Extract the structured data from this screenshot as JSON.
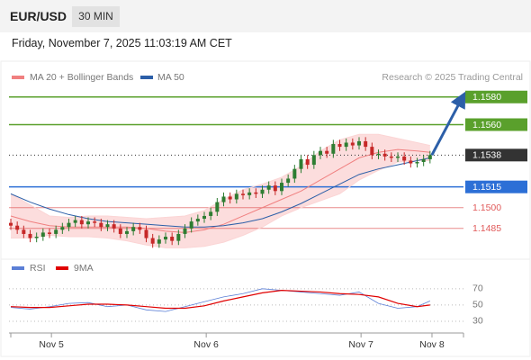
{
  "header": {
    "symbol": "EUR/USD",
    "interval": "30 MIN",
    "timestamp": "Friday, November 7, 2025 11:03:19 AM CET",
    "credit": "Research © 2025 Trading Central"
  },
  "chart_data": [
    {
      "type": "candlestick",
      "xlim": [
        0,
        72
      ],
      "ylim": [
        1.1466,
        1.1587
      ],
      "up_color": "#2e7d32",
      "down_color": "#c62828",
      "x": [
        0,
        1,
        2,
        3,
        4,
        5,
        6,
        7,
        8,
        9,
        10,
        11,
        12,
        13,
        14,
        15,
        16,
        17,
        18,
        19,
        20,
        21,
        22,
        23,
        24,
        25,
        26,
        27,
        28,
        29,
        30,
        31,
        32,
        33,
        34,
        35,
        36,
        37,
        38,
        39,
        40,
        41,
        42,
        43,
        44,
        45,
        46,
        47,
        48,
        49,
        50,
        51,
        52,
        53,
        54,
        55,
        56,
        57,
        58,
        59,
        60,
        61,
        62,
        63,
        64,
        65
      ],
      "open": [
        1.1489,
        1.1487,
        1.1484,
        1.1481,
        1.1478,
        1.1479,
        1.1482,
        1.1481,
        1.1484,
        1.1486,
        1.1489,
        1.1491,
        1.1488,
        1.149,
        1.1489,
        1.1486,
        1.1488,
        1.1485,
        1.1481,
        1.1483,
        1.1486,
        1.1484,
        1.1478,
        1.1474,
        1.1477,
        1.1479,
        1.1476,
        1.1481,
        1.1485,
        1.149,
        1.1492,
        1.1494,
        1.1497,
        1.1504,
        1.1508,
        1.1506,
        1.151,
        1.1509,
        1.1511,
        1.151,
        1.1513,
        1.1516,
        1.1512,
        1.1518,
        1.1521,
        1.1528,
        1.1535,
        1.1531,
        1.1538,
        1.1541,
        1.1539,
        1.1546,
        1.1544,
        1.1547,
        1.1545,
        1.1548,
        1.1544,
        1.1538,
        1.1539,
        1.1537,
        1.1536,
        1.1537,
        1.1534,
        1.1532,
        1.1533,
        1.1535
      ],
      "high": [
        1.1492,
        1.149,
        1.1487,
        1.1484,
        1.1482,
        1.1485,
        1.1485,
        1.1487,
        1.1489,
        1.1492,
        1.1494,
        1.1494,
        1.1493,
        1.1493,
        1.1492,
        1.1491,
        1.1491,
        1.1488,
        1.1486,
        1.1489,
        1.1489,
        1.1487,
        1.1481,
        1.148,
        1.1482,
        1.1482,
        1.1484,
        1.1488,
        1.1493,
        1.1495,
        1.1497,
        1.15,
        1.1507,
        1.1511,
        1.1511,
        1.1513,
        1.1513,
        1.1514,
        1.1514,
        1.1516,
        1.1519,
        1.1519,
        1.1521,
        1.1524,
        1.1531,
        1.1538,
        1.1538,
        1.1541,
        1.1544,
        1.1544,
        1.1549,
        1.1549,
        1.155,
        1.155,
        1.1551,
        1.1551,
        1.1547,
        1.1542,
        1.1542,
        1.154,
        1.154,
        1.154,
        1.1537,
        1.1536,
        1.1538,
        1.1541
      ],
      "low": [
        1.1484,
        1.1481,
        1.1478,
        1.1475,
        1.1475,
        1.1476,
        1.1478,
        1.1478,
        1.1481,
        1.1483,
        1.1486,
        1.1485,
        1.1485,
        1.1486,
        1.1483,
        1.1483,
        1.1482,
        1.1478,
        1.1478,
        1.148,
        1.1481,
        1.1475,
        1.1471,
        1.1471,
        1.1474,
        1.1473,
        1.1473,
        1.1478,
        1.1482,
        1.1487,
        1.1489,
        1.1491,
        1.1494,
        1.1501,
        1.1503,
        1.1503,
        1.1506,
        1.1506,
        1.1507,
        1.1507,
        1.151,
        1.1509,
        1.1509,
        1.1515,
        1.1518,
        1.1525,
        1.1528,
        1.1528,
        1.1535,
        1.1536,
        1.1536,
        1.1541,
        1.1541,
        1.1542,
        1.1542,
        1.1541,
        1.1535,
        1.1535,
        1.1534,
        1.1533,
        1.1533,
        1.1531,
        1.1529,
        1.1529,
        1.153,
        1.1532
      ],
      "close": [
        1.1487,
        1.1484,
        1.1481,
        1.1478,
        1.1479,
        1.1482,
        1.1481,
        1.1484,
        1.1486,
        1.1489,
        1.1491,
        1.1488,
        1.149,
        1.1489,
        1.1486,
        1.1488,
        1.1485,
        1.1481,
        1.1483,
        1.1486,
        1.1484,
        1.1478,
        1.1474,
        1.1477,
        1.1479,
        1.1476,
        1.1481,
        1.1485,
        1.149,
        1.1492,
        1.1494,
        1.1497,
        1.1504,
        1.1508,
        1.1506,
        1.151,
        1.1509,
        1.1511,
        1.151,
        1.1513,
        1.1516,
        1.1512,
        1.1518,
        1.1521,
        1.1528,
        1.1535,
        1.1531,
        1.1538,
        1.1541,
        1.1539,
        1.1546,
        1.1544,
        1.1547,
        1.1545,
        1.1548,
        1.1544,
        1.1538,
        1.1539,
        1.1537,
        1.1536,
        1.1537,
        1.1534,
        1.1532,
        1.1533,
        1.1535,
        1.1538
      ],
      "series": [
        {
          "name": "MA 20 + Bollinger Bands",
          "color": "#f08080",
          "band_color": "#fbd5d5",
          "x": [
            0,
            3,
            6,
            9,
            12,
            15,
            18,
            21,
            24,
            27,
            30,
            33,
            36,
            39,
            42,
            45,
            48,
            51,
            54,
            57,
            60,
            63,
            65
          ],
          "values": [
            1.1494,
            1.149,
            1.1487,
            1.1486,
            1.1486,
            1.1486,
            1.1486,
            1.1485,
            1.1483,
            1.1482,
            1.1484,
            1.1488,
            1.1494,
            1.15,
            1.1506,
            1.1512,
            1.152,
            1.1528,
            1.1536,
            1.154,
            1.1542,
            1.1541,
            1.154
          ],
          "upper": [
            1.151,
            1.1502,
            1.1494,
            1.1493,
            1.1494,
            1.1494,
            1.1493,
            1.1492,
            1.1493,
            1.1494,
            1.1498,
            1.1506,
            1.1513,
            1.1517,
            1.1522,
            1.153,
            1.1541,
            1.1549,
            1.1553,
            1.1553,
            1.155,
            1.1547,
            1.1545
          ],
          "lower": [
            1.1478,
            1.1478,
            1.148,
            1.1479,
            1.1479,
            1.1478,
            1.1476,
            1.1473,
            1.1471,
            1.1471,
            1.1472,
            1.1475,
            1.148,
            1.1486,
            1.1494,
            1.15,
            1.1505,
            1.151,
            1.152,
            1.1527,
            1.1533,
            1.1534,
            1.1534
          ]
        },
        {
          "name": "MA 50",
          "color": "#2c5fa8",
          "x": [
            0,
            3,
            6,
            9,
            12,
            15,
            18,
            21,
            24,
            27,
            30,
            33,
            36,
            39,
            42,
            45,
            48,
            51,
            54,
            57,
            60,
            63,
            65
          ],
          "values": [
            1.151,
            1.1504,
            1.1499,
            1.1495,
            1.1492,
            1.149,
            1.1489,
            1.1488,
            1.1487,
            1.1486,
            1.1486,
            1.1487,
            1.1489,
            1.1492,
            1.1497,
            1.1503,
            1.151,
            1.1517,
            1.1524,
            1.1528,
            1.1531,
            1.1534,
            1.1536
          ]
        }
      ],
      "levels": [
        {
          "value": 1.158,
          "label": "1.1580",
          "color": "#5aa02c",
          "boxed": true,
          "line": "solid"
        },
        {
          "value": 1.156,
          "label": "1.1560",
          "color": "#5aa02c",
          "boxed": true,
          "line": "solid"
        },
        {
          "value": 1.1538,
          "label": "1.1538",
          "color": "#333333",
          "boxed": true,
          "line": "dotted"
        },
        {
          "value": 1.1515,
          "label": "1.1515",
          "color": "#2c6fd6",
          "boxed": true,
          "line": "solid"
        },
        {
          "value": 1.15,
          "label": "1.1500",
          "color": "#e05a5a",
          "boxed": false,
          "line": "solid"
        },
        {
          "value": 1.1485,
          "label": "1.1485",
          "color": "#e05a5a",
          "boxed": false,
          "line": "solid"
        }
      ],
      "arrow_color": "#2c5fa8"
    },
    {
      "type": "line",
      "xlim": [
        0,
        72
      ],
      "ylim": [
        20,
        82
      ],
      "yticks": [
        30,
        50,
        70
      ],
      "grid": "dotted",
      "xticks": [
        {
          "value": 6.3,
          "label": "Nov 5"
        },
        {
          "value": 30.3,
          "label": "Nov 6"
        },
        {
          "value": 54.3,
          "label": "Nov 7"
        },
        {
          "value": 65.3,
          "label": "Nov 8"
        }
      ],
      "series": [
        {
          "name": "RSI",
          "color": "#5b7fd6",
          "x": [
            0,
            3,
            6,
            9,
            12,
            15,
            18,
            21,
            24,
            27,
            30,
            33,
            36,
            39,
            42,
            45,
            48,
            51,
            54,
            57,
            60,
            63,
            65
          ],
          "values": [
            47,
            45,
            48,
            52,
            53,
            48,
            50,
            44,
            42,
            48,
            54,
            60,
            64,
            70,
            68,
            66,
            64,
            62,
            66,
            52,
            46,
            48,
            55
          ]
        },
        {
          "name": "9MA",
          "color": "#e00000",
          "x": [
            0,
            3,
            6,
            9,
            12,
            15,
            18,
            21,
            24,
            27,
            30,
            33,
            36,
            39,
            42,
            45,
            48,
            51,
            54,
            57,
            60,
            63,
            65
          ],
          "values": [
            48,
            47,
            47,
            49,
            51,
            51,
            50,
            48,
            46,
            46,
            49,
            55,
            60,
            65,
            68,
            67,
            66,
            64,
            63,
            60,
            52,
            48,
            50
          ]
        }
      ]
    }
  ]
}
